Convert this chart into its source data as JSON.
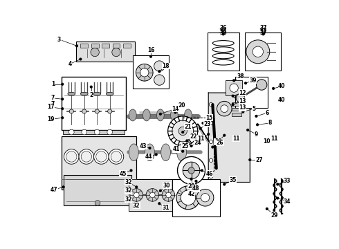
{
  "bg_color": "#ffffff",
  "line_color": "#555555",
  "label_color": "#000000"
}
